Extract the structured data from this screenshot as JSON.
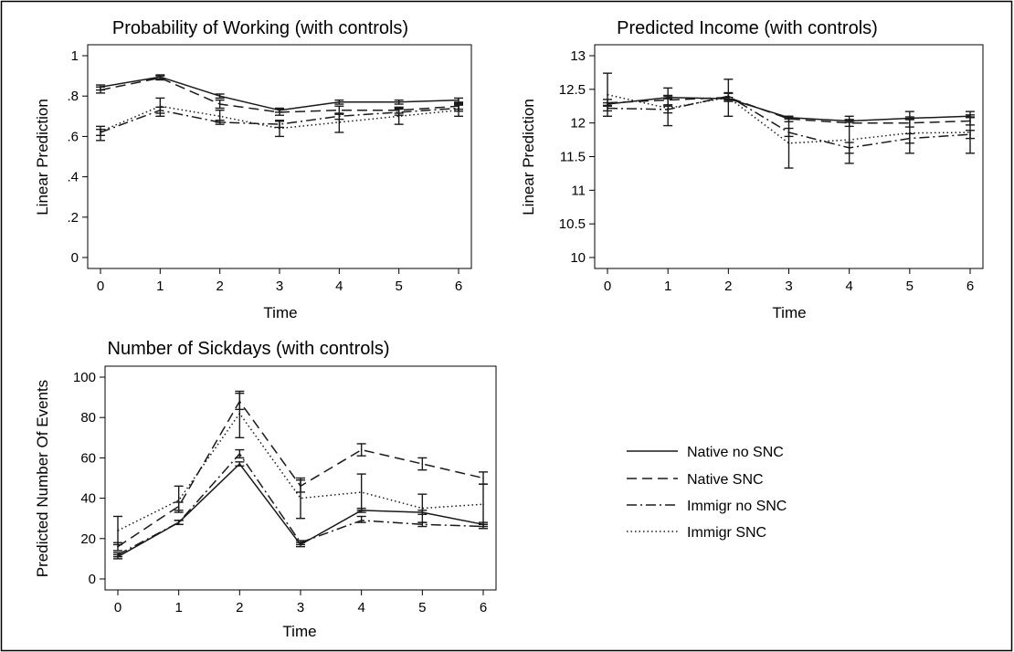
{
  "chart_data": [
    {
      "type": "line",
      "title": "Probability of Working (with controls)",
      "xlabel": "Time",
      "ylabel": "Linear Prediction",
      "x": [
        0,
        1,
        2,
        3,
        4,
        5,
        6
      ],
      "xlim": [
        0,
        6
      ],
      "ylim": [
        0,
        1
      ],
      "yticks": [
        0,
        0.2,
        0.4,
        0.6,
        0.8,
        1
      ],
      "ytick_labels": [
        "0",
        ".2",
        ".4",
        ".6",
        ".8",
        "1"
      ],
      "grid": false,
      "series": [
        {
          "name": "Native no SNC",
          "values": [
            0.845,
            0.895,
            0.8,
            0.73,
            0.77,
            0.77,
            0.78
          ],
          "ci_low": [
            0.83,
            0.885,
            0.79,
            0.72,
            0.76,
            0.76,
            0.77
          ],
          "ci_high": [
            0.855,
            0.905,
            0.81,
            0.74,
            0.78,
            0.78,
            0.79
          ]
        },
        {
          "name": "Native SNC",
          "values": [
            0.83,
            0.89,
            0.76,
            0.72,
            0.73,
            0.73,
            0.75
          ],
          "ci_low": [
            0.815,
            0.88,
            0.74,
            0.705,
            0.71,
            0.715,
            0.735
          ],
          "ci_high": [
            0.845,
            0.9,
            0.78,
            0.735,
            0.75,
            0.745,
            0.765
          ]
        },
        {
          "name": "Immigr no SNC",
          "values": [
            0.62,
            0.73,
            0.67,
            0.66,
            0.7,
            0.72,
            0.74
          ],
          "ci_low": [
            0.605,
            0.715,
            0.66,
            0.645,
            0.685,
            0.705,
            0.725
          ],
          "ci_high": [
            0.635,
            0.745,
            0.68,
            0.675,
            0.715,
            0.735,
            0.755
          ]
        },
        {
          "name": "Immigr SNC",
          "values": [
            0.625,
            0.75,
            0.7,
            0.64,
            0.67,
            0.7,
            0.73
          ],
          "ci_low": [
            0.58,
            0.7,
            0.67,
            0.6,
            0.62,
            0.66,
            0.7
          ],
          "ci_high": [
            0.65,
            0.79,
            0.73,
            0.68,
            0.71,
            0.74,
            0.76
          ]
        }
      ]
    },
    {
      "type": "line",
      "title": "Predicted Income (with controls)",
      "xlabel": "Time",
      "ylabel": "Linear Prediction",
      "x": [
        0,
        1,
        2,
        3,
        4,
        5,
        6
      ],
      "xlim": [
        0,
        6
      ],
      "ylim": [
        10,
        13
      ],
      "yticks": [
        10,
        10.5,
        11,
        11.5,
        12,
        12.5,
        13
      ],
      "ytick_labels": [
        "10",
        "10.5",
        "11",
        "11.5",
        "12",
        "12.5",
        "13"
      ],
      "grid": false,
      "series": [
        {
          "name": "Native no SNC",
          "values": [
            12.28,
            12.38,
            12.36,
            12.08,
            12.03,
            12.07,
            12.1
          ],
          "ci_low": [
            12.26,
            12.36,
            12.34,
            12.06,
            12.01,
            12.05,
            12.08
          ],
          "ci_high": [
            12.3,
            12.4,
            12.38,
            12.1,
            12.05,
            12.09,
            12.12
          ]
        },
        {
          "name": "Native SNC",
          "values": [
            12.3,
            12.34,
            12.38,
            12.06,
            12.0,
            12.0,
            12.03
          ],
          "ci_low": [
            12.25,
            12.27,
            12.32,
            12.02,
            11.95,
            11.94,
            11.97
          ],
          "ci_high": [
            12.35,
            12.41,
            12.44,
            12.1,
            12.05,
            12.06,
            12.09
          ]
        },
        {
          "name": "Immigr no SNC",
          "values": [
            12.22,
            12.2,
            12.4,
            11.86,
            11.63,
            11.77,
            11.83
          ],
          "ci_low": [
            12.18,
            12.15,
            12.35,
            11.8,
            11.55,
            11.7,
            11.77
          ],
          "ci_high": [
            12.26,
            12.25,
            12.45,
            11.92,
            11.71,
            11.84,
            11.89
          ]
        },
        {
          "name": "Immigr SNC",
          "values": [
            12.42,
            12.22,
            12.38,
            11.7,
            11.75,
            11.85,
            11.86
          ],
          "ci_low": [
            12.1,
            11.96,
            12.1,
            11.33,
            11.4,
            11.55,
            11.55
          ],
          "ci_high": [
            12.74,
            12.52,
            12.65,
            12.08,
            12.1,
            12.17,
            12.17
          ]
        }
      ]
    },
    {
      "type": "line",
      "title": "Number of Sickdays (with controls)",
      "xlabel": "Time",
      "ylabel": "Predicted Number Of Events",
      "x": [
        0,
        1,
        2,
        3,
        4,
        5,
        6
      ],
      "xlim": [
        0,
        6
      ],
      "ylim": [
        0,
        100
      ],
      "yticks": [
        0,
        20,
        40,
        60,
        80,
        100
      ],
      "ytick_labels": [
        "0",
        "20",
        "40",
        "60",
        "80",
        "100"
      ],
      "grid": false,
      "series": [
        {
          "name": "Native no SNC",
          "values": [
            11,
            28,
            57,
            17,
            34,
            33,
            27
          ],
          "ci_low": [
            10,
            27,
            56,
            16,
            33,
            32,
            26
          ],
          "ci_high": [
            12,
            29,
            58,
            18,
            35,
            34,
            28
          ]
        },
        {
          "name": "Native SNC",
          "values": [
            16,
            36,
            88,
            46,
            64,
            57,
            50
          ],
          "ci_low": [
            14,
            34,
            84,
            43,
            61,
            54,
            47
          ],
          "ci_high": [
            18,
            38,
            92,
            49,
            67,
            60,
            53
          ]
        },
        {
          "name": "Immigr no SNC",
          "values": [
            12,
            28,
            62,
            18,
            29,
            27,
            26
          ],
          "ci_low": [
            11,
            27,
            60,
            17,
            28,
            26,
            25
          ],
          "ci_high": [
            13,
            29,
            64,
            19,
            31,
            28,
            27
          ]
        },
        {
          "name": "Immigr SNC",
          "values": [
            24,
            39,
            82,
            40,
            43,
            35,
            37
          ],
          "ci_low": [
            17,
            33,
            70,
            30,
            34,
            28,
            27
          ],
          "ci_high": [
            31,
            46,
            93,
            50,
            52,
            42,
            47
          ]
        }
      ]
    }
  ],
  "legend": {
    "placement": "right of bottom-left panel",
    "items": [
      {
        "label": "Native no SNC",
        "style": "solid"
      },
      {
        "label": "Native SNC",
        "style": "dashed"
      },
      {
        "label": "Immigr no SNC",
        "style": "dashdot"
      },
      {
        "label": "Immigr SNC",
        "style": "dotted"
      }
    ]
  },
  "colors": {
    "line": "#1a1a1a",
    "frame": "#000000",
    "background": "#ffffff"
  }
}
